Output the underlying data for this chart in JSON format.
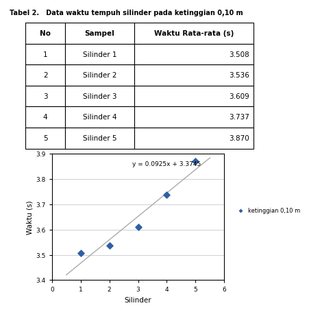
{
  "table_title": "Tabel 2.   Data waktu tempuh silinder pada ketinggian 0,10 m",
  "table_headers": [
    "No",
    "Sampel",
    "Waktu Rata-rata (s)"
  ],
  "table_rows": [
    [
      "1",
      "Silinder 1",
      "3.508"
    ],
    [
      "2",
      "Silinder 2",
      "3.536"
    ],
    [
      "3",
      "Silinder 3",
      "3.609"
    ],
    [
      "4",
      "Silinder 4",
      "3.737"
    ],
    [
      "5",
      "Silinder 5",
      "3.870"
    ]
  ],
  "x_data": [
    1,
    2,
    3,
    4,
    5
  ],
  "y_data": [
    3.508,
    3.536,
    3.609,
    3.737,
    3.87
  ],
  "slope": 0.0925,
  "intercept": 3.3745,
  "equation": "y = 0.0925x + 3.3745",
  "xlabel": "Silinder",
  "ylabel": "Waktu (s)",
  "xlim": [
    0,
    6
  ],
  "ylim": [
    3.4,
    3.9
  ],
  "yticks": [
    3.4,
    3.5,
    3.6,
    3.7,
    3.8,
    3.9
  ],
  "xticks": [
    0,
    1,
    2,
    3,
    4,
    5,
    6
  ],
  "legend_label": "ketinggian 0,10 m",
  "dot_color": "#2E5FA3",
  "line_color": "#AAAAAA",
  "bg_color": "#FFFFFF",
  "plot_bg_color": "#FFFFFF",
  "grid_color": "#C8C8C8",
  "equation_x": 2.8,
  "equation_y": 3.858
}
